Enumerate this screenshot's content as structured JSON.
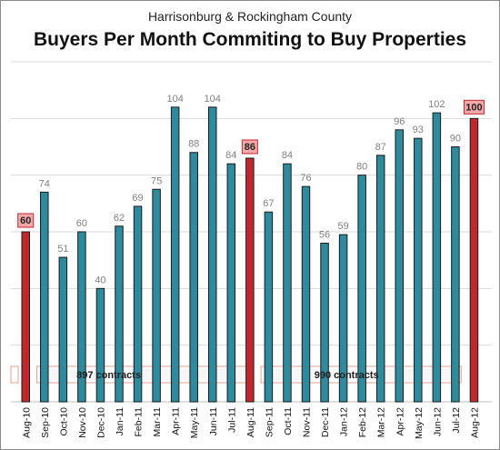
{
  "chart_data": {
    "type": "bar",
    "title": "Buyers Per Month Commiting to Buy Properties",
    "subtitle": "Harrisonburg & Rockingham County",
    "categories": [
      "Aug-10",
      "Sep-10",
      "Oct-10",
      "Nov-10",
      "Dec-10",
      "Jan-11",
      "Feb-11",
      "Mar-11",
      "Apr-11",
      "May-11",
      "Jun-11",
      "Jul-11",
      "Aug-11",
      "Sep-11",
      "Oct-11",
      "Nov-11",
      "Dec-11",
      "Jan-12",
      "Feb-12",
      "Mar-12",
      "Apr-12",
      "May-12",
      "Jun-12",
      "Jul-12",
      "Aug-12"
    ],
    "values": [
      60,
      74,
      51,
      60,
      40,
      62,
      69,
      75,
      104,
      88,
      104,
      84,
      86,
      67,
      84,
      76,
      56,
      59,
      80,
      87,
      96,
      93,
      102,
      90,
      100
    ],
    "highlighted_categories": [
      "Aug-10",
      "Aug-11",
      "Aug-12"
    ],
    "ylim": [
      0,
      120
    ],
    "grid": true,
    "annotations": [
      {
        "text": "897 contracts",
        "from": "Sep-10",
        "to": "Aug-11"
      },
      {
        "text": "990 contracts",
        "from": "Sep-11",
        "to": "Aug-12"
      }
    ],
    "colors": {
      "bar": "#2e8b9e",
      "highlight_bar": "#c0282d",
      "highlight_label_bg": "#f4a8a8",
      "highlight_label_border": "#c0282d",
      "band_border": "#e0a090",
      "band_bg": "#ffffff"
    }
  }
}
